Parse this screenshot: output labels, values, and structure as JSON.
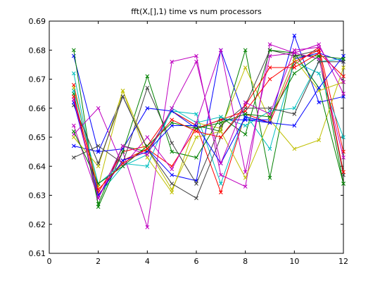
{
  "chart_data": {
    "type": "line",
    "title": "fft(X,[],1) time vs num processors",
    "xlabel": "",
    "ylabel": "",
    "xlim": [
      0,
      12
    ],
    "ylim": [
      0.61,
      0.69
    ],
    "xticks": [
      0,
      2,
      4,
      6,
      8,
      10,
      12
    ],
    "yticks": [
      0.61,
      0.62,
      0.63,
      0.64,
      0.65,
      0.66,
      0.67,
      0.68,
      0.69
    ],
    "grid": false,
    "marker": "x",
    "x": [
      1,
      2,
      3,
      4,
      5,
      6,
      7,
      8,
      9,
      10,
      11,
      12
    ],
    "series": [
      {
        "color": "#0000ff",
        "values": [
          0.678,
          0.645,
          0.664,
          0.646,
          0.637,
          0.635,
          0.68,
          0.656,
          0.655,
          0.685,
          0.662,
          0.664
        ]
      },
      {
        "color": "#008000",
        "values": [
          0.665,
          0.627,
          0.647,
          0.645,
          0.659,
          0.654,
          0.652,
          0.68,
          0.636,
          0.678,
          0.678,
          0.634
        ]
      },
      {
        "color": "#ff0000",
        "values": [
          0.668,
          0.631,
          0.645,
          0.647,
          0.659,
          0.654,
          0.631,
          0.658,
          0.655,
          0.675,
          0.681,
          0.645
        ]
      },
      {
        "color": "#00bfbf",
        "values": [
          0.672,
          0.63,
          0.64,
          0.644,
          0.659,
          0.658,
          0.634,
          0.658,
          0.646,
          0.676,
          0.672,
          0.65
        ]
      },
      {
        "color": "#bf00bf",
        "values": [
          0.654,
          0.629,
          0.645,
          0.619,
          0.676,
          0.678,
          0.637,
          0.633,
          0.682,
          0.679,
          0.677,
          0.643
        ]
      },
      {
        "color": "#bfbf00",
        "values": [
          0.667,
          0.633,
          0.666,
          0.643,
          0.631,
          0.655,
          0.653,
          0.674,
          0.656,
          0.646,
          0.649,
          0.674
        ]
      },
      {
        "color": "#404040",
        "values": [
          0.643,
          0.647,
          0.641,
          0.667,
          0.648,
          0.634,
          0.654,
          0.661,
          0.68,
          0.678,
          0.68,
          0.637
        ]
      },
      {
        "color": "#0000ff",
        "values": [
          0.647,
          0.645,
          0.646,
          0.66,
          0.659,
          0.653,
          0.656,
          0.656,
          0.656,
          0.677,
          0.679,
          0.676
        ]
      },
      {
        "color": "#008000",
        "values": [
          0.68,
          0.626,
          0.645,
          0.671,
          0.645,
          0.643,
          0.657,
          0.651,
          0.68,
          0.679,
          0.667,
          0.634
        ]
      },
      {
        "color": "#ff0000",
        "values": [
          0.663,
          0.63,
          0.642,
          0.646,
          0.64,
          0.653,
          0.656,
          0.659,
          0.67,
          0.676,
          0.68,
          0.638
        ]
      },
      {
        "color": "#00bfbf",
        "values": [
          0.666,
          0.634,
          0.641,
          0.64,
          0.66,
          0.655,
          0.657,
          0.654,
          0.659,
          0.66,
          0.676,
          0.677
        ]
      },
      {
        "color": "#bf00bf",
        "values": [
          0.651,
          0.66,
          0.64,
          0.65,
          0.639,
          0.655,
          0.68,
          0.638,
          0.678,
          0.679,
          0.682,
          0.665
        ]
      },
      {
        "color": "#bfbf00",
        "values": [
          0.65,
          0.64,
          0.666,
          0.646,
          0.632,
          0.65,
          0.652,
          0.636,
          0.656,
          0.677,
          0.666,
          0.669
        ]
      },
      {
        "color": "#404040",
        "values": [
          0.661,
          0.641,
          0.664,
          0.646,
          0.634,
          0.629,
          0.65,
          0.66,
          0.66,
          0.658,
          0.676,
          0.676
        ]
      },
      {
        "color": "#0000ff",
        "values": [
          0.662,
          0.63,
          0.642,
          0.645,
          0.654,
          0.654,
          0.641,
          0.657,
          0.655,
          0.654,
          0.667,
          0.678
        ]
      },
      {
        "color": "#008000",
        "values": [
          0.652,
          0.634,
          0.64,
          0.647,
          0.655,
          0.653,
          0.655,
          0.658,
          0.657,
          0.672,
          0.678,
          0.677
        ]
      },
      {
        "color": "#ff0000",
        "values": [
          0.664,
          0.632,
          0.641,
          0.646,
          0.656,
          0.652,
          0.65,
          0.661,
          0.674,
          0.674,
          0.679,
          0.671
        ]
      },
      {
        "color": "#bf00bf",
        "values": [
          0.663,
          0.629,
          0.647,
          0.644,
          0.66,
          0.676,
          0.641,
          0.662,
          0.658,
          0.68,
          0.681,
          0.669
        ]
      }
    ]
  }
}
